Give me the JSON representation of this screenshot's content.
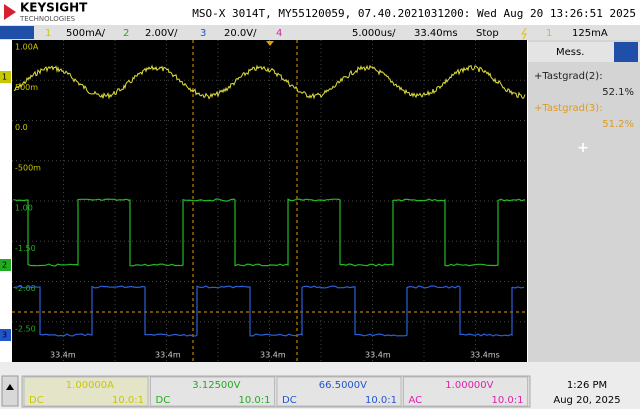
{
  "header": {
    "brand": "KEYSIGHT",
    "brand_sub": "TECHNOLOGIES",
    "info": "MSO-X 3014T, MY55120059, 07.40.2021031200: Wed Aug 20 13:26:51 2025"
  },
  "channel_bar": {
    "ch1": {
      "num": "1",
      "scale": "500mA/"
    },
    "ch2": {
      "num": "2",
      "scale": "2.00V/"
    },
    "ch3": {
      "num": "3",
      "scale": "20.0V/"
    },
    "ch4": {
      "num": "4"
    },
    "timebase": "5.000us/",
    "delay": "33.40ms",
    "status": "Stop",
    "trigger_source": "1",
    "trigger_level": "125mA"
  },
  "graticule": {
    "y_labels": [
      "1.00A",
      "500m",
      "0.0",
      "-500m",
      "1.00",
      "-1.50",
      "-2.00",
      "-2.50"
    ],
    "x_labels": [
      "33.4m",
      "33.4m",
      "33.4m",
      "33.4m",
      "33.4ms"
    ],
    "markers": [
      "1",
      "2",
      "3"
    ]
  },
  "measurements": {
    "title": "Mess.",
    "items": [
      {
        "label": "+Tastgrad(2):",
        "value": "52.1%"
      },
      {
        "label": "+Tastgrad(3):",
        "value": "51.2%"
      }
    ],
    "add": "+"
  },
  "footer": {
    "channels": [
      {
        "value": "1.00000A",
        "coupling": "DC",
        "probe": "10.0:1"
      },
      {
        "value": "3.12500V",
        "coupling": "DC",
        "probe": "10.0:1"
      },
      {
        "value": "66.5000V",
        "coupling": "DC",
        "probe": "10.0:1"
      },
      {
        "value": "1.00000V",
        "coupling": "AC",
        "probe": "10.0:1"
      }
    ],
    "time": "1:26 PM",
    "date": "Aug 20, 2025"
  }
}
